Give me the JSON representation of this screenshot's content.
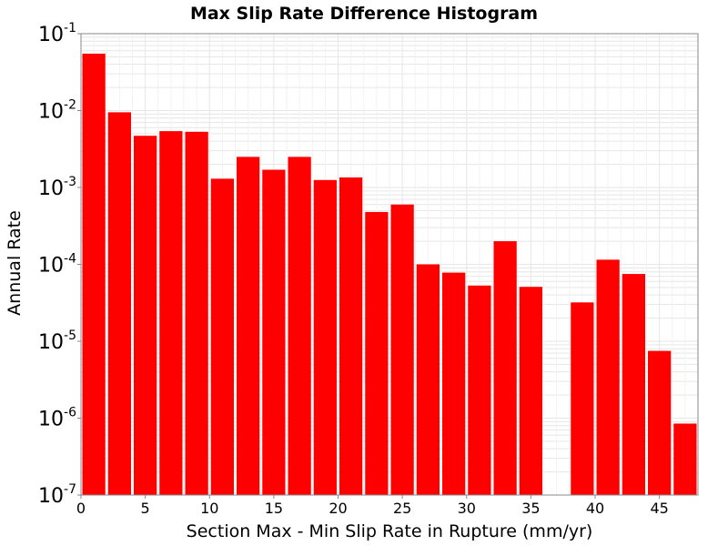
{
  "chart_data": {
    "type": "bar",
    "title": "Max Slip Rate Difference Histogram",
    "xlabel": "Section Max - Min Slip Rate in Rupture (mm/yr)",
    "ylabel": "Annual Rate",
    "xlim": [
      0,
      48
    ],
    "ylim": [
      1e-07,
      0.1
    ],
    "yscale": "log",
    "grid": true,
    "bar_color": "#ff0000",
    "x_ticks": [
      0,
      5,
      10,
      15,
      20,
      25,
      30,
      35,
      40,
      45
    ],
    "y_ticks": [
      {
        "value": 1e-07,
        "base": "10",
        "exp": "-7"
      },
      {
        "value": 1e-06,
        "base": "10",
        "exp": "-6"
      },
      {
        "value": 1e-05,
        "base": "10",
        "exp": "-5"
      },
      {
        "value": 0.0001,
        "base": "10",
        "exp": "-4"
      },
      {
        "value": 0.001,
        "base": "10",
        "exp": "-3"
      },
      {
        "value": 0.01,
        "base": "10",
        "exp": "-2"
      },
      {
        "value": 0.1,
        "base": "10",
        "exp": "-1"
      }
    ],
    "bin_width": 2,
    "bins": [
      {
        "x": 1,
        "value": 0.055
      },
      {
        "x": 3,
        "value": 0.0095
      },
      {
        "x": 5,
        "value": 0.0047
      },
      {
        "x": 7,
        "value": 0.0054
      },
      {
        "x": 9,
        "value": 0.0053
      },
      {
        "x": 11,
        "value": 0.0013
      },
      {
        "x": 13,
        "value": 0.0025
      },
      {
        "x": 15,
        "value": 0.0017
      },
      {
        "x": 17,
        "value": 0.0025
      },
      {
        "x": 19,
        "value": 0.00125
      },
      {
        "x": 21,
        "value": 0.00135
      },
      {
        "x": 23,
        "value": 0.00048
      },
      {
        "x": 25,
        "value": 0.0006
      },
      {
        "x": 27,
        "value": 0.0001
      },
      {
        "x": 29,
        "value": 7.8e-05
      },
      {
        "x": 31,
        "value": 5.3e-05
      },
      {
        "x": 33,
        "value": 0.0002
      },
      {
        "x": 35,
        "value": 5.1e-05
      },
      {
        "x": 39,
        "value": 3.2e-05
      },
      {
        "x": 41,
        "value": 0.000115
      },
      {
        "x": 43,
        "value": 7.5e-05
      },
      {
        "x": 45,
        "value": 7.5e-06
      },
      {
        "x": 47,
        "value": 8.5e-07
      }
    ]
  }
}
